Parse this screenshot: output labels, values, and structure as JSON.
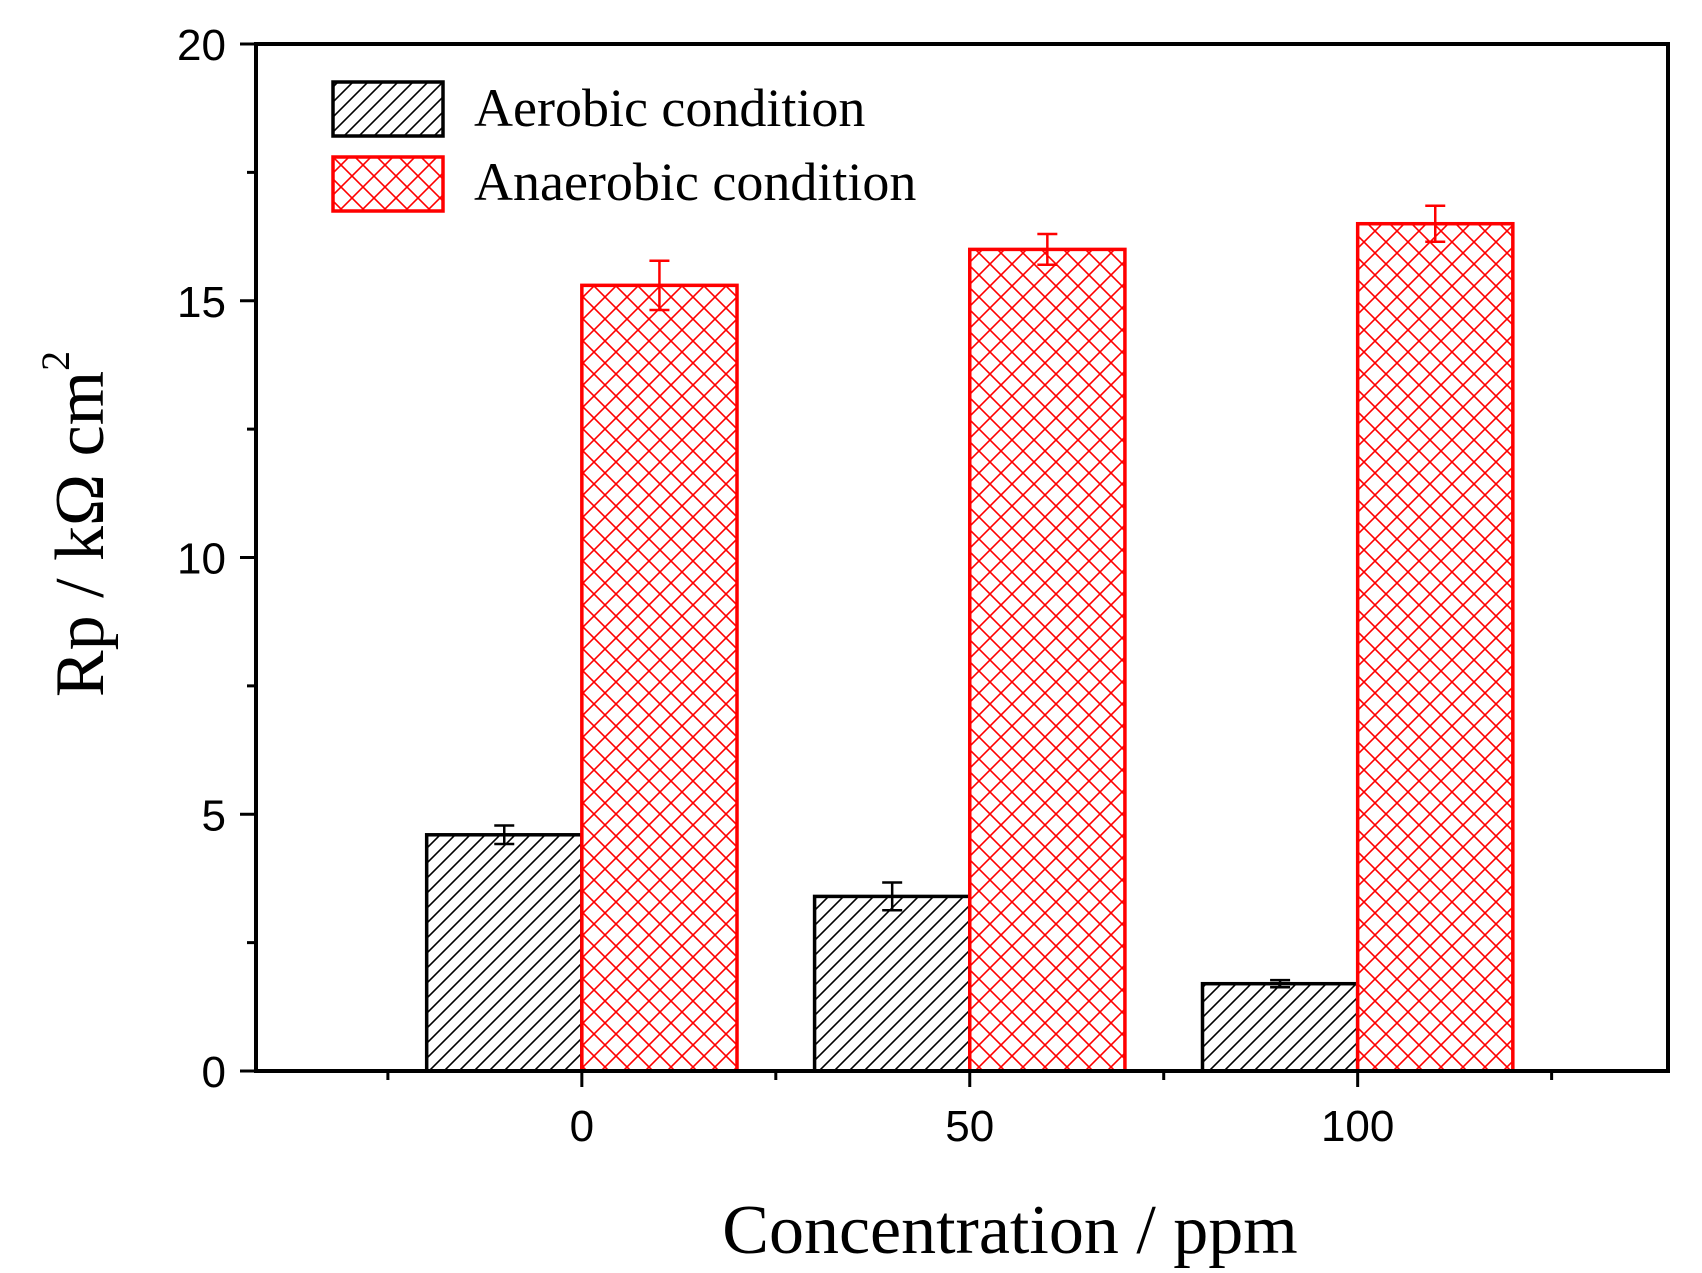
{
  "chart_data": {
    "type": "bar",
    "title": "",
    "xlabel": "Concentration / ppm",
    "ylabel_main": "Rp / kΩ cm",
    "ylabel_sup": "2",
    "categories": [
      "0",
      "50",
      "100"
    ],
    "ylim": [
      0,
      20
    ],
    "yticks": [
      0,
      5,
      10,
      15,
      20
    ],
    "xlim": [
      -42,
      140
    ],
    "bar_width": 20,
    "grid": false,
    "legend_position": "top-left",
    "series": [
      {
        "name": "Aerobic condition",
        "color": "#000000",
        "pattern": "diagonal-hatch",
        "x": [
          0,
          50,
          100
        ],
        "values": [
          4.6,
          3.4,
          1.7
        ],
        "errors": [
          0.18,
          0.27,
          0.07
        ]
      },
      {
        "name": "Anaerobic condition",
        "color": "#ff0000",
        "pattern": "cross-hatch",
        "x": [
          0,
          50,
          100
        ],
        "values": [
          15.3,
          16.0,
          16.5
        ],
        "errors": [
          0.48,
          0.3,
          0.35
        ]
      }
    ]
  }
}
